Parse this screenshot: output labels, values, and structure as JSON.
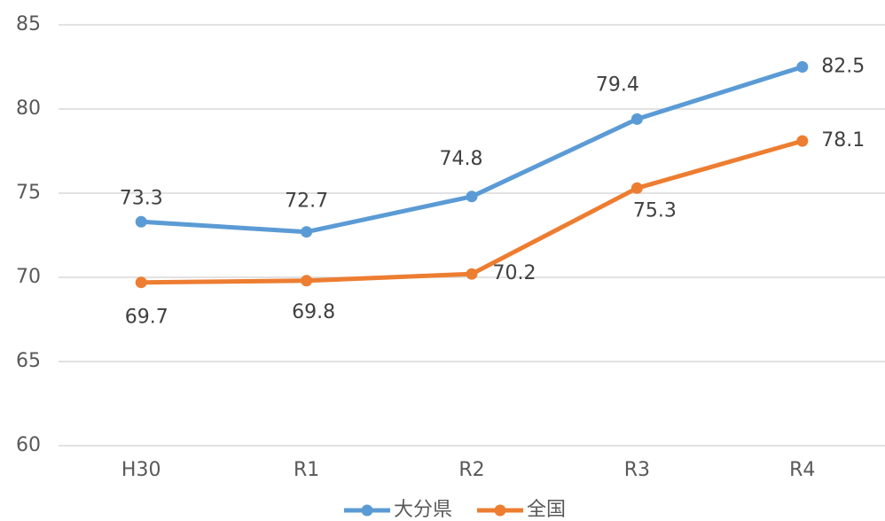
{
  "chart_data": {
    "type": "line",
    "categories": [
      "H30",
      "R1",
      "R2",
      "R3",
      "R4"
    ],
    "series": [
      {
        "name": "大分県",
        "color": "#5b9bd5",
        "values": [
          73.3,
          72.7,
          74.8,
          79.4,
          82.5
        ]
      },
      {
        "name": "全国",
        "color": "#ed7d31",
        "values": [
          69.7,
          69.8,
          70.2,
          75.3,
          78.1
        ]
      }
    ],
    "ylim": [
      60,
      85
    ],
    "yticks": [
      60,
      65,
      70,
      75,
      80,
      85
    ],
    "grid": true,
    "legend": "bottom"
  }
}
